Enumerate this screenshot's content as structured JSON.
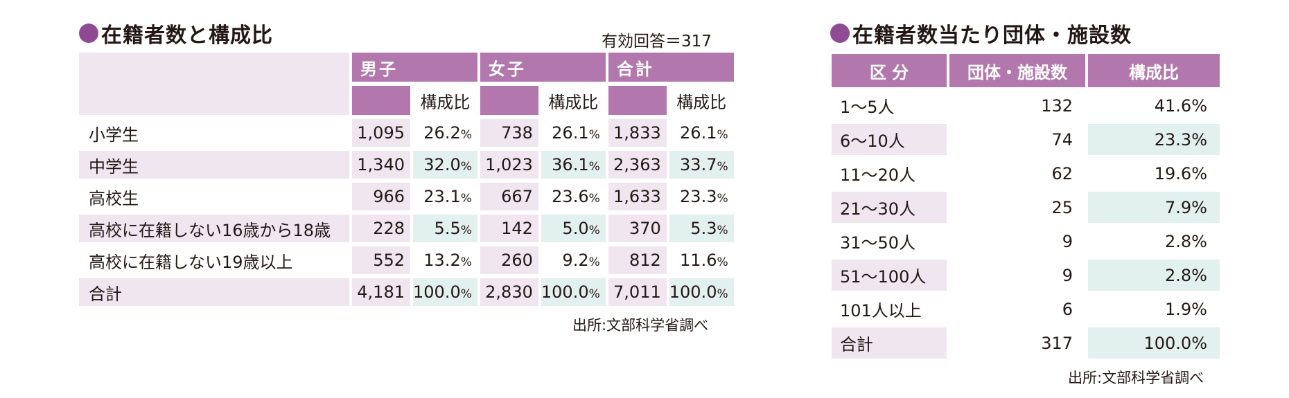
{
  "left": {
    "title": "在籍者数と構成比",
    "note": "有効回答＝317",
    "headers": {
      "boys": "男子",
      "girls": "女子",
      "total": "合計",
      "ratio": "構成比"
    },
    "rows": [
      {
        "label": "小学生",
        "boys": "1,095",
        "boys_pct": "26.2",
        "girls": "738",
        "girls_pct": "26.1",
        "total": "1,833",
        "total_pct": "26.1"
      },
      {
        "label": "中学生",
        "boys": "1,340",
        "boys_pct": "32.0",
        "girls": "1,023",
        "girls_pct": "36.1",
        "total": "2,363",
        "total_pct": "33.7"
      },
      {
        "label": "高校生",
        "boys": "966",
        "boys_pct": "23.1",
        "girls": "667",
        "girls_pct": "23.6",
        "total": "1,633",
        "total_pct": "23.3"
      },
      {
        "label": "高校に在籍しない16歳から18歳",
        "boys": "228",
        "boys_pct": "5.5",
        "girls": "142",
        "girls_pct": "5.0",
        "total": "370",
        "total_pct": "5.3"
      },
      {
        "label": "高校に在籍しない19歳以上",
        "boys": "552",
        "boys_pct": "13.2",
        "girls": "260",
        "girls_pct": "9.2",
        "total": "812",
        "total_pct": "11.6"
      },
      {
        "label": "合計",
        "boys": "4,181",
        "boys_pct": "100.0",
        "girls": "2,830",
        "girls_pct": "100.0",
        "total": "7,011",
        "total_pct": "100.0"
      }
    ],
    "pct_unit": "%",
    "source": "出所:文部科学省調べ"
  },
  "right": {
    "title": "在籍者数当たり団体・施設数",
    "headers": {
      "category": "区 分",
      "count": "団体・施設数",
      "ratio": "構成比"
    },
    "rows": [
      {
        "label": "1〜5人",
        "count": "132",
        "pct": "41.6%"
      },
      {
        "label": "6〜10人",
        "count": "74",
        "pct": "23.3%"
      },
      {
        "label": "11〜20人",
        "count": "62",
        "pct": "19.6%"
      },
      {
        "label": "21〜30人",
        "count": "25",
        "pct": "7.9%"
      },
      {
        "label": "31〜50人",
        "count": "9",
        "pct": "2.8%"
      },
      {
        "label": "51〜100人",
        "count": "9",
        "pct": "2.8%"
      },
      {
        "label": "101人以上",
        "count": "6",
        "pct": "1.9%"
      },
      {
        "label": "合計",
        "count": "317",
        "pct": "100.0%"
      }
    ],
    "source": "出所:文部科学省調べ"
  },
  "colors": {
    "accent": "#8e4a92",
    "header": "#b278ad",
    "lavender": "#efe6f0",
    "mint": "#e2f0ee"
  }
}
